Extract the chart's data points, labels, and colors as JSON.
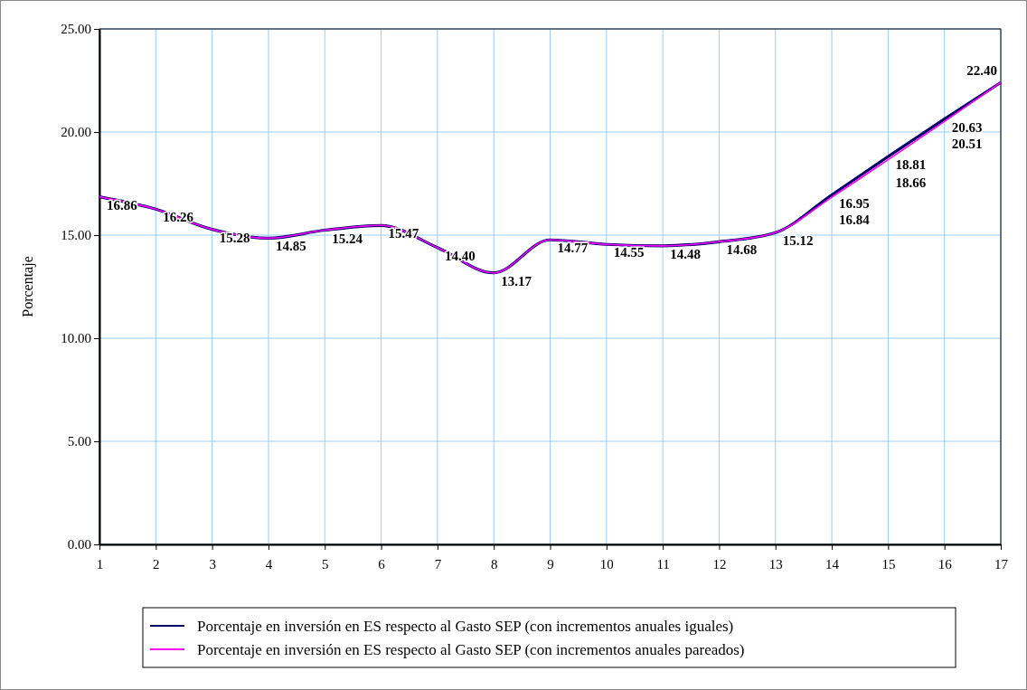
{
  "chart_data": {
    "type": "line",
    "ylabel": "Porcentaje",
    "x": [
      1,
      2,
      3,
      4,
      5,
      6,
      7,
      8,
      9,
      10,
      11,
      12,
      13,
      14,
      15,
      16,
      17
    ],
    "xlim": [
      1,
      17
    ],
    "xticks": [
      1,
      2,
      3,
      4,
      5,
      6,
      7,
      8,
      9,
      10,
      11,
      12,
      13,
      14,
      15,
      16,
      17
    ],
    "ylim": [
      0,
      25
    ],
    "yticks": [
      {
        "value": 0,
        "label": "0.00"
      },
      {
        "value": 5,
        "label": "5.00"
      },
      {
        "value": 10,
        "label": "10.00"
      },
      {
        "value": 15,
        "label": "15.00"
      },
      {
        "value": 20,
        "label": "20.00"
      },
      {
        "value": 25,
        "label": "25.00"
      }
    ],
    "grid": true,
    "legend": "bottom",
    "marker": "none",
    "line_style": "solid",
    "series": [
      {
        "name": "Porcentaje en inversión en ES respecto al Gasto SEP (con incrementos anuales iguales)",
        "color": "#000066",
        "values": [
          16.86,
          16.26,
          15.28,
          14.85,
          15.24,
          15.47,
          14.4,
          13.17,
          14.77,
          14.55,
          14.48,
          14.68,
          15.12,
          16.95,
          18.81,
          20.63,
          22.4
        ],
        "value_labels": [
          "16.86",
          "16.26",
          "15.28",
          "14.85",
          "15.24",
          "15.47",
          "14.40",
          "13.17",
          "14.77",
          "14.55",
          "14.48",
          "14.68",
          "15.12",
          "16.95",
          "18.81",
          "20.63",
          "22.40"
        ]
      },
      {
        "name": "Porcentaje en inversión en ES respecto al Gasto SEP (con incrementos anuales pareados)",
        "color": "#ff00ff",
        "values": [
          16.86,
          16.26,
          15.28,
          14.85,
          15.24,
          15.47,
          14.4,
          13.17,
          14.77,
          14.55,
          14.48,
          14.68,
          15.12,
          16.84,
          18.66,
          20.51,
          22.4
        ],
        "value_labels": [
          null,
          null,
          null,
          null,
          null,
          null,
          null,
          null,
          null,
          null,
          null,
          null,
          null,
          "16.84",
          "18.66",
          "20.51",
          null
        ]
      }
    ]
  }
}
